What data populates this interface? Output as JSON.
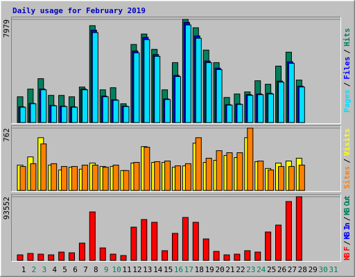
{
  "title": "Daily usage for February 2019",
  "legend_separator": "/",
  "chart_data": [
    {
      "type": "bar",
      "categories": [
        "1",
        "2",
        "3",
        "4",
        "5",
        "6",
        "7",
        "8",
        "9",
        "10",
        "11",
        "12",
        "13",
        "14",
        "15",
        "16",
        "17",
        "18",
        "19",
        "20",
        "21",
        "22",
        "23",
        "24",
        "25",
        "26",
        "27",
        "28",
        "29",
        "30",
        "31"
      ],
      "ylim": [
        0,
        7979
      ],
      "yticks": [
        7979
      ],
      "series": [
        {
          "name": "Pages",
          "color": "#00e0ff",
          "values": [
            1186,
            1456,
            2534,
            1294,
            1240,
            1186,
            2534,
            6955,
            1995,
            1725,
            1240,
            5391,
            6415,
            5122,
            1779,
            3558,
            7548,
            6523,
            4636,
            4097,
            1348,
            1402,
            2103,
            2157,
            2210,
            3127,
            4582,
            2749,
            null,
            null,
            null
          ]
        },
        {
          "name": "Files",
          "color": "#0000ff",
          "values": [
            1220,
            1490,
            2600,
            1330,
            1275,
            1220,
            2600,
            7150,
            2050,
            1770,
            1275,
            5540,
            6590,
            5260,
            1830,
            3650,
            7750,
            6700,
            4760,
            4210,
            1385,
            1440,
            2160,
            2215,
            2270,
            3210,
            4700,
            2820,
            null,
            null,
            null
          ]
        },
        {
          "name": "Hits",
          "color": "#00805c",
          "values": [
            1995,
            2588,
            3396,
            2103,
            2103,
            1995,
            2749,
            7494,
            2534,
            2696,
            1456,
            6038,
            6847,
            5661,
            2534,
            4636,
            7979,
            7332,
            5607,
            4636,
            1941,
            2210,
            2372,
            3235,
            2965,
            4367,
            5445,
            3289,
            null,
            null,
            null
          ]
        }
      ]
    },
    {
      "type": "bar",
      "categories": [
        "1",
        "2",
        "3",
        "4",
        "5",
        "6",
        "7",
        "8",
        "9",
        "10",
        "11",
        "12",
        "13",
        "14",
        "15",
        "16",
        "17",
        "18",
        "19",
        "20",
        "21",
        "22",
        "23",
        "24",
        "25",
        "26",
        "27",
        "28",
        "29",
        "30",
        "31"
      ],
      "ylim": [
        0,
        762
      ],
      "yticks": [
        762
      ],
      "series": [
        {
          "name": "Sites",
          "color": "#ff8000",
          "values": [
            293,
            327,
            569,
            327,
            293,
            293,
            310,
            310,
            285,
            310,
            243,
            343,
            528,
            352,
            360,
            301,
            327,
            645,
            394,
            486,
            461,
            461,
            762,
            360,
            251,
            293,
            293,
            310,
            null,
            null,
            null
          ]
        },
        {
          "name": "Visits",
          "color": "#ffff00",
          "values": [
            310,
            410,
            645,
            310,
            251,
            285,
            260,
            335,
            293,
            293,
            243,
            335,
            536,
            343,
            343,
            285,
            301,
            578,
            343,
            368,
            427,
            402,
            645,
            352,
            268,
            335,
            360,
            394,
            null,
            null,
            null
          ]
        }
      ]
    },
    {
      "type": "bar",
      "categories": [
        "1",
        "2",
        "3",
        "4",
        "5",
        "6",
        "7",
        "8",
        "9",
        "10",
        "11",
        "12",
        "13",
        "14",
        "15",
        "16",
        "17",
        "18",
        "19",
        "20",
        "21",
        "22",
        "23",
        "24",
        "25",
        "26",
        "27",
        "28",
        "29",
        "30",
        "31"
      ],
      "label_colors": [
        "#000000",
        "#00805c",
        "#00805c",
        "#000000",
        "#000000",
        "#000000",
        "#000000",
        "#000000",
        "#00805c",
        "#00805c",
        "#000000",
        "#000000",
        "#000000",
        "#000000",
        "#000000",
        "#00805c",
        "#00805c",
        "#000000",
        "#000000",
        "#000000",
        "#000000",
        "#000000",
        "#00805c",
        "#00805c",
        "#000000",
        "#000000",
        "#000000",
        "#000000",
        "#000000",
        "#00805c",
        "#00805c"
      ],
      "ylim": [
        0,
        93552
      ],
      "yticks": [
        93552
      ],
      "series": [
        {
          "name": "KB F",
          "color": "#ff0000",
          "values": [
            8135,
            10169,
            9152,
            8135,
            12202,
            11186,
            25422,
            71181,
            18304,
            9152,
            7118,
            48810,
            59995,
            55928,
            14236,
            39658,
            63046,
            55928,
            31523,
            13219,
            8135,
            9152,
            14236,
            12202,
            41692,
            51861,
            86434,
            93552,
            null,
            null,
            null
          ]
        },
        {
          "name": "KB In",
          "color": "#0000ff"
        },
        {
          "name": "KB Out",
          "color": "#00805c"
        }
      ]
    }
  ]
}
